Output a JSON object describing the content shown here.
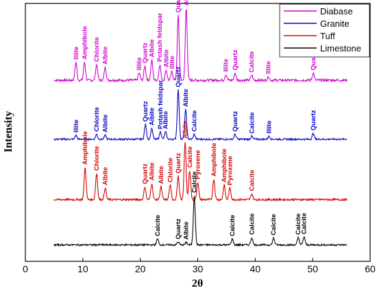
{
  "chart_data": {
    "type": "line",
    "xlabel": "2θ",
    "ylabel": "Intensity",
    "xlim": [
      0,
      60
    ],
    "x_ticks": [
      0,
      10,
      20,
      30,
      40,
      50,
      60
    ],
    "grid": false,
    "legend_position": "top-right",
    "series": [
      {
        "name": "Diabase",
        "color": "#d000d0",
        "peaks": [
          {
            "x": 8.8,
            "h": 0.25,
            "label": "Illite"
          },
          {
            "x": 10.3,
            "h": 0.25,
            "label": "Amphibole"
          },
          {
            "x": 12.4,
            "h": 0.22,
            "label": "Chlorite"
          },
          {
            "x": 13.9,
            "h": 0.18,
            "label": "Albite"
          },
          {
            "x": 19.8,
            "h": 0.1,
            "label": "Illite"
          },
          {
            "x": 20.8,
            "h": 0.2,
            "label": "Quartz"
          },
          {
            "x": 22.0,
            "h": 0.28,
            "label": "Albite"
          },
          {
            "x": 23.4,
            "h": 0.22,
            "label": "Potash feldspar"
          },
          {
            "x": 24.5,
            "h": 0.14,
            "label": "Albite"
          },
          {
            "x": 25.5,
            "h": 0.12,
            "label": "Illite"
          },
          {
            "x": 26.6,
            "h": 0.9,
            "label": "Quartz"
          },
          {
            "x": 28.0,
            "h": 1.0,
            "label": "Albite"
          },
          {
            "x": 34.9,
            "h": 0.08,
            "label": "Illite"
          },
          {
            "x": 36.5,
            "h": 0.1,
            "label": "Quartz"
          },
          {
            "x": 39.4,
            "h": 0.07,
            "label": "Calcite"
          },
          {
            "x": 42.3,
            "h": 0.05,
            "label": "Illite"
          },
          {
            "x": 50.1,
            "h": 0.1,
            "label": "Quartz"
          }
        ]
      },
      {
        "name": "Granite",
        "color": "#0000c8",
        "peaks": [
          {
            "x": 8.8,
            "h": 0.08,
            "label": "Illite"
          },
          {
            "x": 12.4,
            "h": 0.1,
            "label": "Chlorite"
          },
          {
            "x": 13.9,
            "h": 0.08,
            "label": "Albite"
          },
          {
            "x": 20.9,
            "h": 0.3,
            "label": "Quartz"
          },
          {
            "x": 22.0,
            "h": 0.22,
            "label": "Albite"
          },
          {
            "x": 23.5,
            "h": 0.15,
            "label": "Potash feldspar"
          },
          {
            "x": 24.4,
            "h": 0.15,
            "label": "Albite"
          },
          {
            "x": 26.6,
            "h": 1.0,
            "label": "Quartz"
          },
          {
            "x": 27.9,
            "h": 0.6,
            "label": "Albite"
          },
          {
            "x": 29.4,
            "h": 0.1,
            "label": "Calcite"
          },
          {
            "x": 36.5,
            "h": 0.1,
            "label": "Quartz"
          },
          {
            "x": 39.4,
            "h": 0.06,
            "label": "Calcite"
          },
          {
            "x": 42.4,
            "h": 0.06,
            "label": "Illite"
          },
          {
            "x": 50.1,
            "h": 0.12,
            "label": "Quartz"
          }
        ]
      },
      {
        "name": "Tuff",
        "color": "#d40000",
        "peaks": [
          {
            "x": 10.4,
            "h": 0.55,
            "label": "Amphibole"
          },
          {
            "x": 12.4,
            "h": 0.45,
            "label": "Chlorite"
          },
          {
            "x": 13.9,
            "h": 0.2,
            "label": "Albite"
          },
          {
            "x": 20.8,
            "h": 0.22,
            "label": "Quartz"
          },
          {
            "x": 22.0,
            "h": 0.28,
            "label": "Albite"
          },
          {
            "x": 23.6,
            "h": 0.22,
            "label": "Albite"
          },
          {
            "x": 25.2,
            "h": 0.25,
            "label": "Chlorite"
          },
          {
            "x": 26.6,
            "h": 0.4,
            "label": "Quartz"
          },
          {
            "x": 27.8,
            "h": 1.0,
            "label": "Albite"
          },
          {
            "x": 28.6,
            "h": 0.5,
            "label": "Calcite"
          },
          {
            "x": 30.0,
            "h": 0.3,
            "label": "Pyroxene"
          },
          {
            "x": 32.8,
            "h": 0.35,
            "label": "Amphibole"
          },
          {
            "x": 34.6,
            "h": 0.25,
            "label": "Amphibole"
          },
          {
            "x": 35.6,
            "h": 0.2,
            "label": "Pyroxene"
          },
          {
            "x": 39.4,
            "h": 0.1,
            "label": "Calcite"
          }
        ]
      },
      {
        "name": "Limestone",
        "color": "#000000",
        "peaks": [
          {
            "x": 23.0,
            "h": 0.12,
            "label": "Calcite"
          },
          {
            "x": 26.6,
            "h": 0.06,
            "label": "Quartz"
          },
          {
            "x": 28.0,
            "h": 0.05,
            "label": "Albite"
          },
          {
            "x": 29.4,
            "h": 1.0,
            "label": "Calcite"
          },
          {
            "x": 36.0,
            "h": 0.12,
            "label": "Calcite"
          },
          {
            "x": 39.4,
            "h": 0.15,
            "label": "Calcite"
          },
          {
            "x": 43.2,
            "h": 0.14,
            "label": "Calcite"
          },
          {
            "x": 47.5,
            "h": 0.15,
            "label": "Calcite"
          },
          {
            "x": 48.5,
            "h": 0.16,
            "label": "Calcite"
          }
        ]
      }
    ]
  }
}
